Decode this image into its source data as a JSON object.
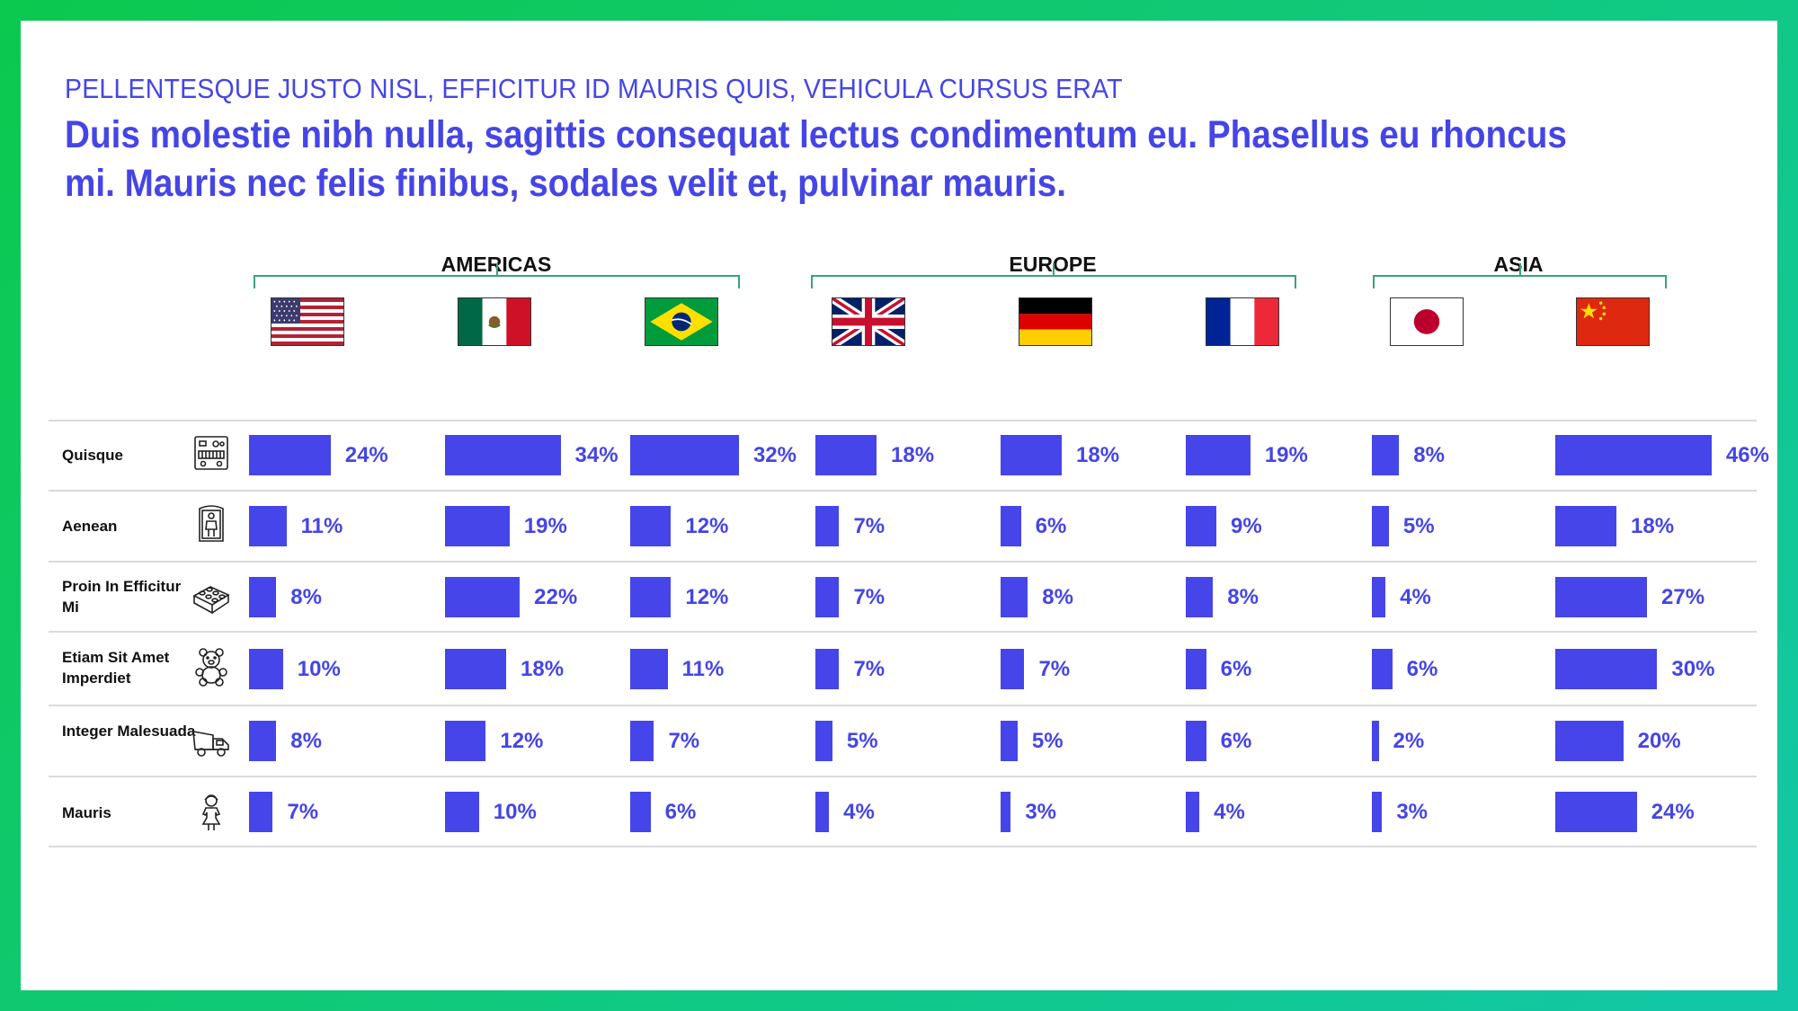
{
  "eyebrow": "PELLENTESQUE JUSTO NISL, EFFICITUR ID MAURIS QUIS, VEHICULA CURSUS ERAT",
  "headline": "Duis molestie nibh nulla, sagittis consequat lectus condimentum eu. Phasellus eu rhoncus mi. Mauris nec felis finibus, sodales velit et, pulvinar mauris.",
  "colors": {
    "bar": "#4545ea",
    "accent_text": "#4545e6",
    "bracket": "#3aa27a",
    "frame_gradient": [
      "#0bc94e",
      "#12c7a8"
    ]
  },
  "regions": [
    {
      "label": "AMERICAS",
      "countries": [
        "usa-flag",
        "mexico-flag",
        "brazil-flag"
      ]
    },
    {
      "label": "EUROPE",
      "countries": [
        "uk-flag",
        "germany-flag",
        "france-flag"
      ]
    },
    {
      "label": "ASIA",
      "countries": [
        "japan-flag",
        "china-flag"
      ]
    }
  ],
  "chart_data": {
    "type": "bar",
    "value_unit": "%",
    "columns": [
      "usa-flag",
      "mexico-flag",
      "brazil-flag",
      "uk-flag",
      "germany-flag",
      "france-flag",
      "japan-flag",
      "china-flag"
    ],
    "rows": [
      {
        "label": "Quisque",
        "icon": "toy-piano-icon",
        "values": [
          24,
          34,
          32,
          18,
          18,
          19,
          8,
          46
        ]
      },
      {
        "label": "Aenean",
        "icon": "doll-box-icon",
        "values": [
          11,
          19,
          12,
          7,
          6,
          9,
          5,
          18
        ]
      },
      {
        "label": "Proin In Efficitur Mi",
        "icon": "building-brick-icon",
        "values": [
          8,
          22,
          12,
          7,
          8,
          8,
          4,
          27
        ]
      },
      {
        "label": "Etiam Sit Amet Imperdiet",
        "icon": "teddy-bear-icon",
        "values": [
          10,
          18,
          11,
          7,
          7,
          6,
          6,
          30
        ]
      },
      {
        "label": "Integer Malesuada",
        "icon": "toy-truck-icon",
        "values": [
          8,
          12,
          7,
          5,
          5,
          6,
          2,
          20
        ]
      },
      {
        "label": "Mauris",
        "icon": "doll-icon",
        "values": [
          7,
          10,
          6,
          4,
          3,
          4,
          3,
          24
        ]
      }
    ]
  }
}
